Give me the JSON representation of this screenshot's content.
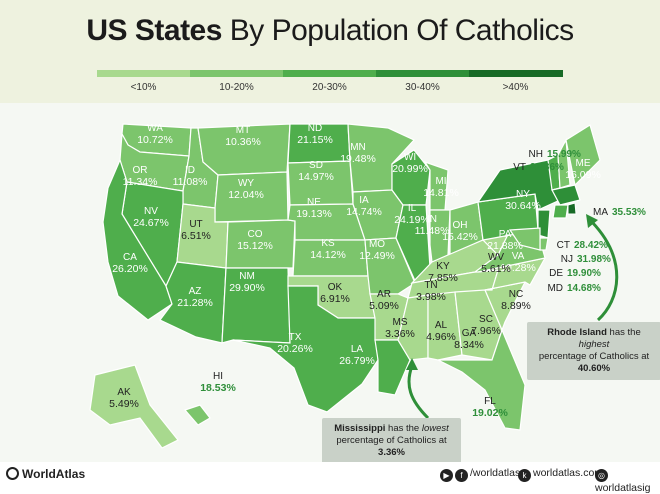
{
  "title": {
    "bold": "US States",
    "light": " By Population Of Catholics"
  },
  "legend": [
    {
      "label": "<10%",
      "color": "#a8d98e"
    },
    {
      "label": "10-20%",
      "color": "#7cc56c"
    },
    {
      "label": "20-30%",
      "color": "#4fae4c"
    },
    {
      "label": "30-40%",
      "color": "#2e8f38"
    },
    {
      "label": ">40%",
      "color": "#176a26"
    }
  ],
  "states": [
    {
      "abbr": "WA",
      "pct": "10.72%"
    },
    {
      "abbr": "OR",
      "pct": "11.34%"
    },
    {
      "abbr": "ID",
      "pct": "11.08%"
    },
    {
      "abbr": "MT",
      "pct": "10.36%"
    },
    {
      "abbr": "WY",
      "pct": "12.04%"
    },
    {
      "abbr": "NV",
      "pct": "24.67%"
    },
    {
      "abbr": "CA",
      "pct": "26.20%"
    },
    {
      "abbr": "UT",
      "pct": "6.51%"
    },
    {
      "abbr": "CO",
      "pct": "15.12%"
    },
    {
      "abbr": "AZ",
      "pct": "21.28%"
    },
    {
      "abbr": "NM",
      "pct": "29.90%"
    },
    {
      "abbr": "ND",
      "pct": "21.15%"
    },
    {
      "abbr": "SD",
      "pct": "14.97%"
    },
    {
      "abbr": "NE",
      "pct": "19.13%"
    },
    {
      "abbr": "KS",
      "pct": "14.12%"
    },
    {
      "abbr": "OK",
      "pct": "6.91%"
    },
    {
      "abbr": "TX",
      "pct": "20.26%"
    },
    {
      "abbr": "MN",
      "pct": "19.48%"
    },
    {
      "abbr": "IA",
      "pct": "14.74%"
    },
    {
      "abbr": "MO",
      "pct": "12.49%"
    },
    {
      "abbr": "AR",
      "pct": "5.09%"
    },
    {
      "abbr": "LA",
      "pct": "26.79%"
    },
    {
      "abbr": "WI",
      "pct": "20.99%"
    },
    {
      "abbr": "IL",
      "pct": "24.19%"
    },
    {
      "abbr": "MI",
      "pct": "14.81%"
    },
    {
      "abbr": "IN",
      "pct": "11.48%"
    },
    {
      "abbr": "OH",
      "pct": "15.42%"
    },
    {
      "abbr": "KY",
      "pct": "7.85%"
    },
    {
      "abbr": "TN",
      "pct": "3.98%"
    },
    {
      "abbr": "MS",
      "pct": "3.36%"
    },
    {
      "abbr": "AL",
      "pct": "4.96%"
    },
    {
      "abbr": "GA",
      "pct": "8.34%"
    },
    {
      "abbr": "FL",
      "pct": "19.02%"
    },
    {
      "abbr": "SC",
      "pct": "7.96%"
    },
    {
      "abbr": "NC",
      "pct": "8.89%"
    },
    {
      "abbr": "VA",
      "pct": "10.28%"
    },
    {
      "abbr": "WV",
      "pct": "5.61%"
    },
    {
      "abbr": "PA",
      "pct": "21.88%"
    },
    {
      "abbr": "NY",
      "pct": "30.64%"
    },
    {
      "abbr": "VT",
      "pct": "20.86%"
    },
    {
      "abbr": "NH",
      "pct": "15.99%"
    },
    {
      "abbr": "ME",
      "pct": "16.09%"
    },
    {
      "abbr": "MA",
      "pct": "35.53%"
    },
    {
      "abbr": "CT",
      "pct": "28.42%"
    },
    {
      "abbr": "NJ",
      "pct": "31.98%"
    },
    {
      "abbr": "DE",
      "pct": "19.90%"
    },
    {
      "abbr": "MD",
      "pct": "14.68%"
    },
    {
      "abbr": "AK",
      "pct": "5.49%"
    },
    {
      "abbr": "HI",
      "pct": "18.53%"
    }
  ],
  "callouts": {
    "ri": {
      "state": "Rhode Island",
      "text1": " has the ",
      "emph": "highest",
      "text2": "percentage of Catholics at ",
      "value": "40.60%"
    },
    "ms": {
      "state": "Mississippi",
      "text1": " has the ",
      "emph": "lowest",
      "text2": "percentage of Catholics at ",
      "value": "3.36%"
    }
  },
  "footer": {
    "brand": "WorldAtlas",
    "social_handle": "/worldatlas",
    "site": "worldatlas.com",
    "ig": "worldatlasig"
  }
}
